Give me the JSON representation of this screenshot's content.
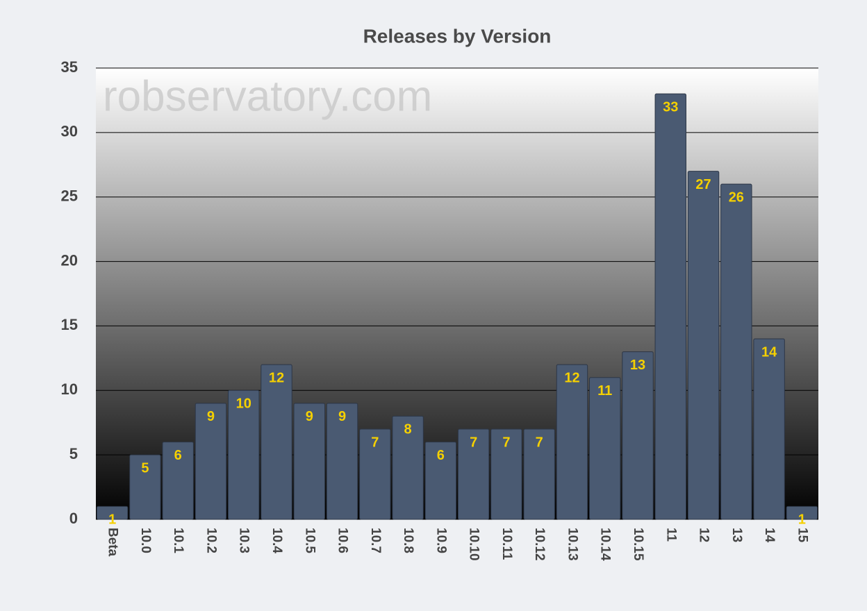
{
  "chart_data": {
    "type": "bar",
    "title": "Releases by Version",
    "watermark": "robservatory.com",
    "categories": [
      "Beta",
      "10.0",
      "10.1",
      "10.2",
      "10.3",
      "10.4",
      "10.5",
      "10.6",
      "10.7",
      "10.8",
      "10.9",
      "10.10",
      "10.11",
      "10.12",
      "10.13",
      "10.14",
      "10.15",
      "11",
      "12",
      "13",
      "14",
      "15"
    ],
    "values": [
      1,
      5,
      6,
      9,
      10,
      12,
      9,
      9,
      7,
      8,
      6,
      7,
      7,
      7,
      12,
      11,
      13,
      33,
      27,
      26,
      14,
      1
    ],
    "color": "#4a5a72",
    "label_color": "#f5d000",
    "ylim": [
      0,
      35
    ],
    "yticks": [
      0,
      5,
      10,
      15,
      20,
      25,
      30,
      35
    ],
    "grid": true
  }
}
